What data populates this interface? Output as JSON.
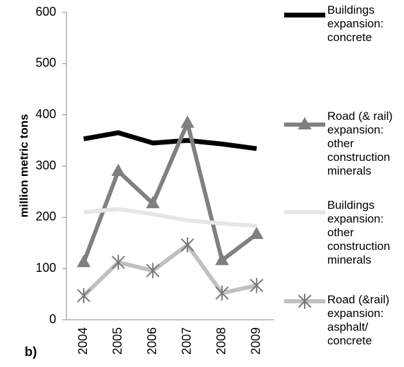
{
  "chart_data": {
    "type": "line",
    "ylabel": "million metric tons",
    "panel_label": "b)",
    "categories": [
      "2004",
      "2005",
      "2006",
      "2007",
      "2008",
      "2009"
    ],
    "series": [
      {
        "name": "Buildings expansion: concrete",
        "color": "#000000",
        "values": [
          353,
          365,
          345,
          350,
          343,
          334
        ]
      },
      {
        "name": "Road (& rail) expansion: other construction minerals",
        "color": "#808080",
        "marker": "triangle",
        "values": [
          112,
          290,
          227,
          384,
          116,
          167
        ]
      },
      {
        "name": "Buildings expansion: other construction minerals",
        "color": "#e6e6e6",
        "values": [
          210,
          216,
          206,
          194,
          188,
          183
        ]
      },
      {
        "name": "Road (&rail) expansion: asphalt/ concrete",
        "color": "#c0c0c0",
        "marker": "asterisk",
        "values": [
          47,
          112,
          96,
          146,
          52,
          67
        ]
      }
    ],
    "ylim": [
      0,
      600
    ],
    "yticks": [
      0,
      100,
      200,
      300,
      400,
      500,
      600
    ],
    "grid": false,
    "legend": "right"
  }
}
